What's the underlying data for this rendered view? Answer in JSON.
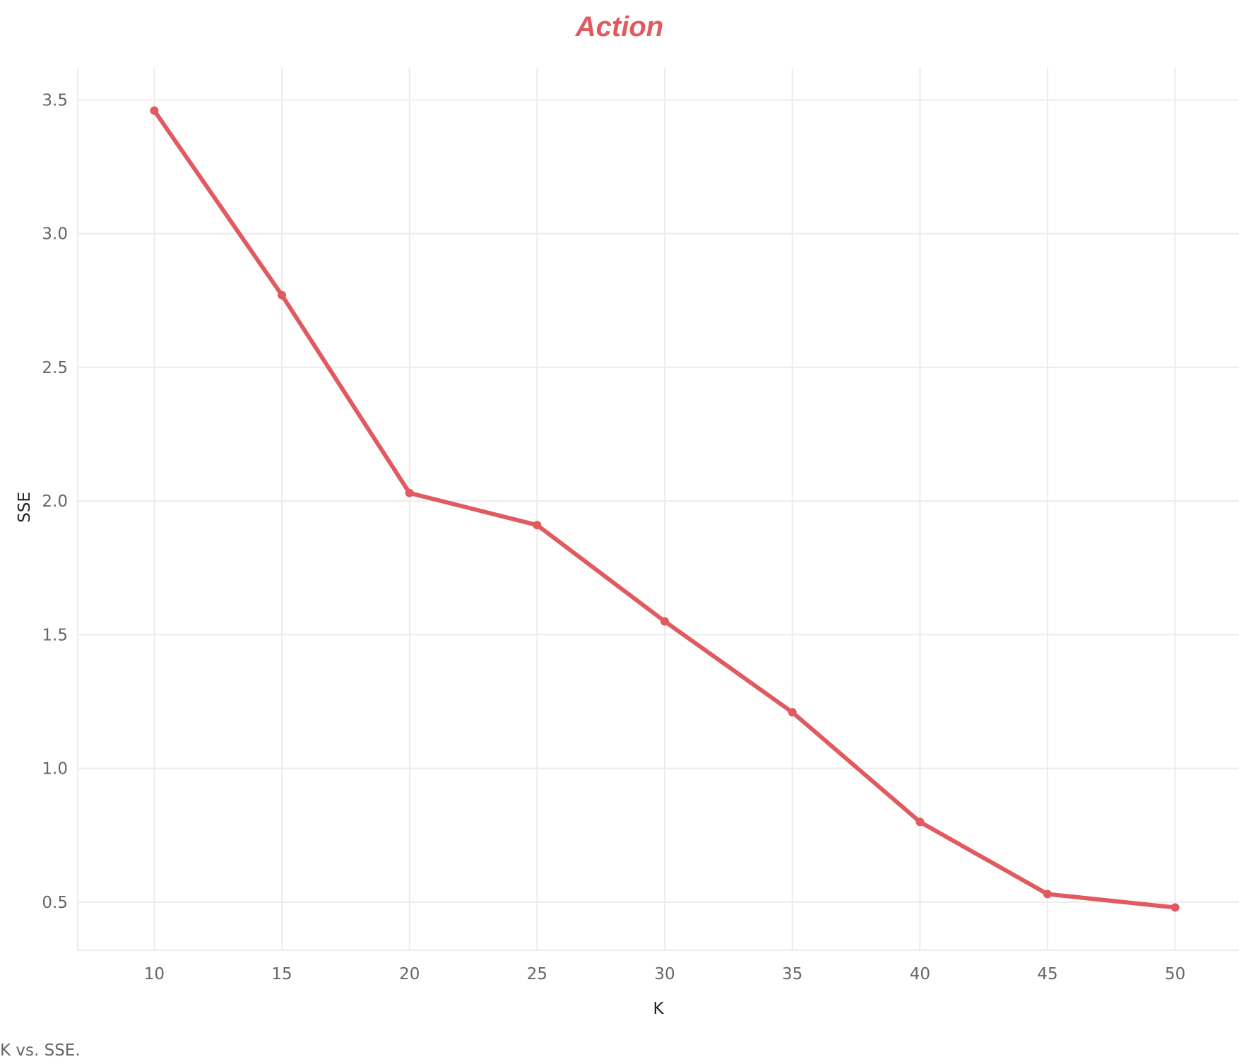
{
  "colors": {
    "accent": "#e05a5f",
    "grid": "#ececec"
  },
  "caption": "K vs. SSE.",
  "chart_data": {
    "type": "line",
    "title": "Action",
    "xlabel": "K",
    "ylabel": "SSE",
    "x": [
      10,
      15,
      20,
      25,
      30,
      35,
      40,
      45,
      50
    ],
    "series": [
      {
        "values": [
          3.46,
          2.77,
          2.03,
          1.91,
          1.55,
          1.21,
          0.8,
          0.53,
          0.48
        ]
      }
    ],
    "x_ticks": [
      "10",
      "15",
      "20",
      "25",
      "30",
      "35",
      "40",
      "45",
      "50"
    ],
    "y_ticks": [
      "0.5",
      "1.0",
      "1.5",
      "2.0",
      "2.5",
      "3.0",
      "3.5"
    ],
    "xlim": [
      7,
      52.5
    ],
    "ylim": [
      0.32,
      3.62
    ],
    "grid": true,
    "legend": "none"
  }
}
